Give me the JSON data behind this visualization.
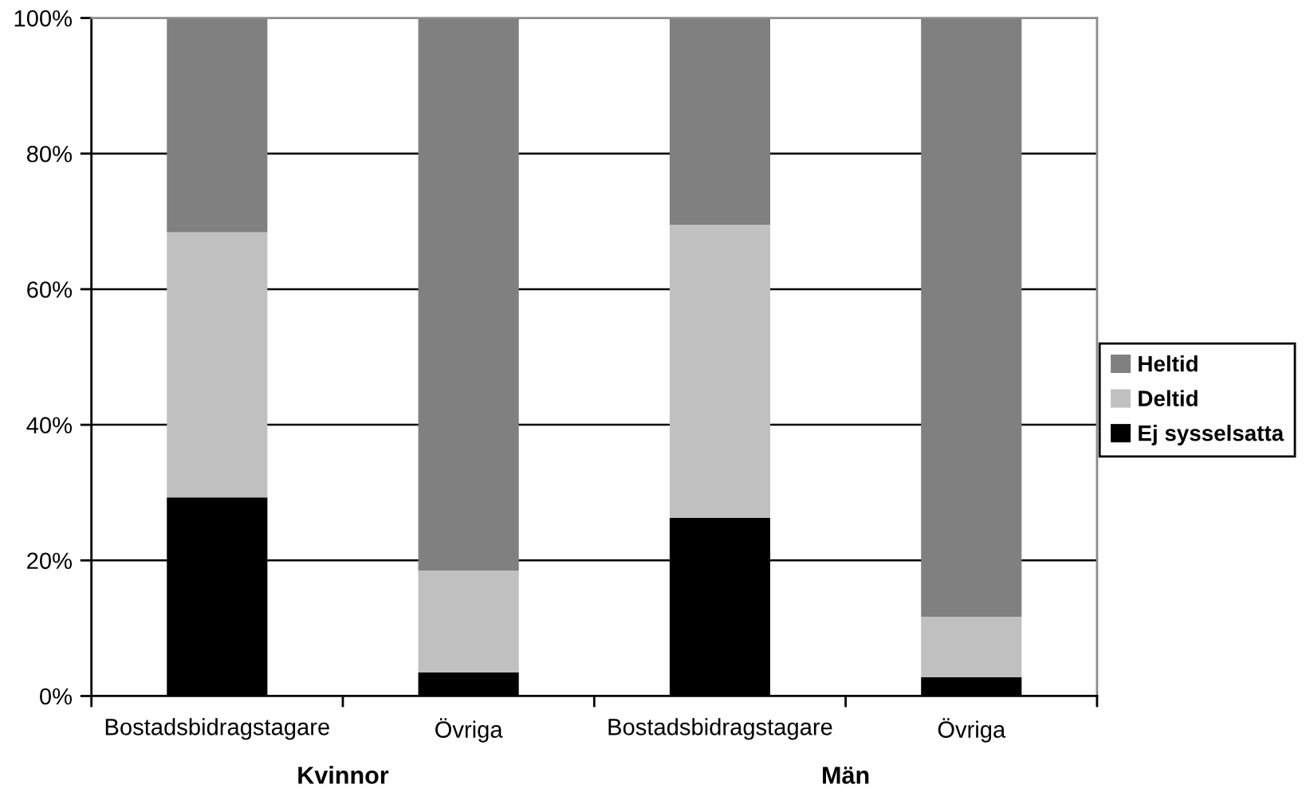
{
  "chart_data": {
    "type": "bar",
    "stacked": true,
    "categories": [
      "Bostadsbidragstagare",
      "Övriga",
      "Bostadsbidragstagare",
      "Övriga"
    ],
    "series": [
      {
        "name": "Ej sysselsatta",
        "color": "#000000",
        "values": [
          29.3,
          3.5,
          26.3,
          2.8
        ]
      },
      {
        "name": "Deltid",
        "color": "#c0c0c0",
        "values": [
          39.1,
          15.0,
          43.2,
          8.9
        ]
      },
      {
        "name": "Heltid",
        "color": "#808080",
        "values": [
          31.6,
          81.5,
          30.5,
          88.3
        ]
      }
    ],
    "ylim": [
      0,
      100
    ],
    "yticks": [
      {
        "value": 0,
        "label": "0%"
      },
      {
        "value": 20,
        "label": "20%"
      },
      {
        "value": 40,
        "label": "40%"
      },
      {
        "value": 60,
        "label": "60%"
      },
      {
        "value": 80,
        "label": "80%"
      },
      {
        "value": 100,
        "label": "100%"
      }
    ],
    "grid": "y",
    "legend": "right",
    "annotations": [
      "Kvinnor",
      "Män"
    ]
  }
}
